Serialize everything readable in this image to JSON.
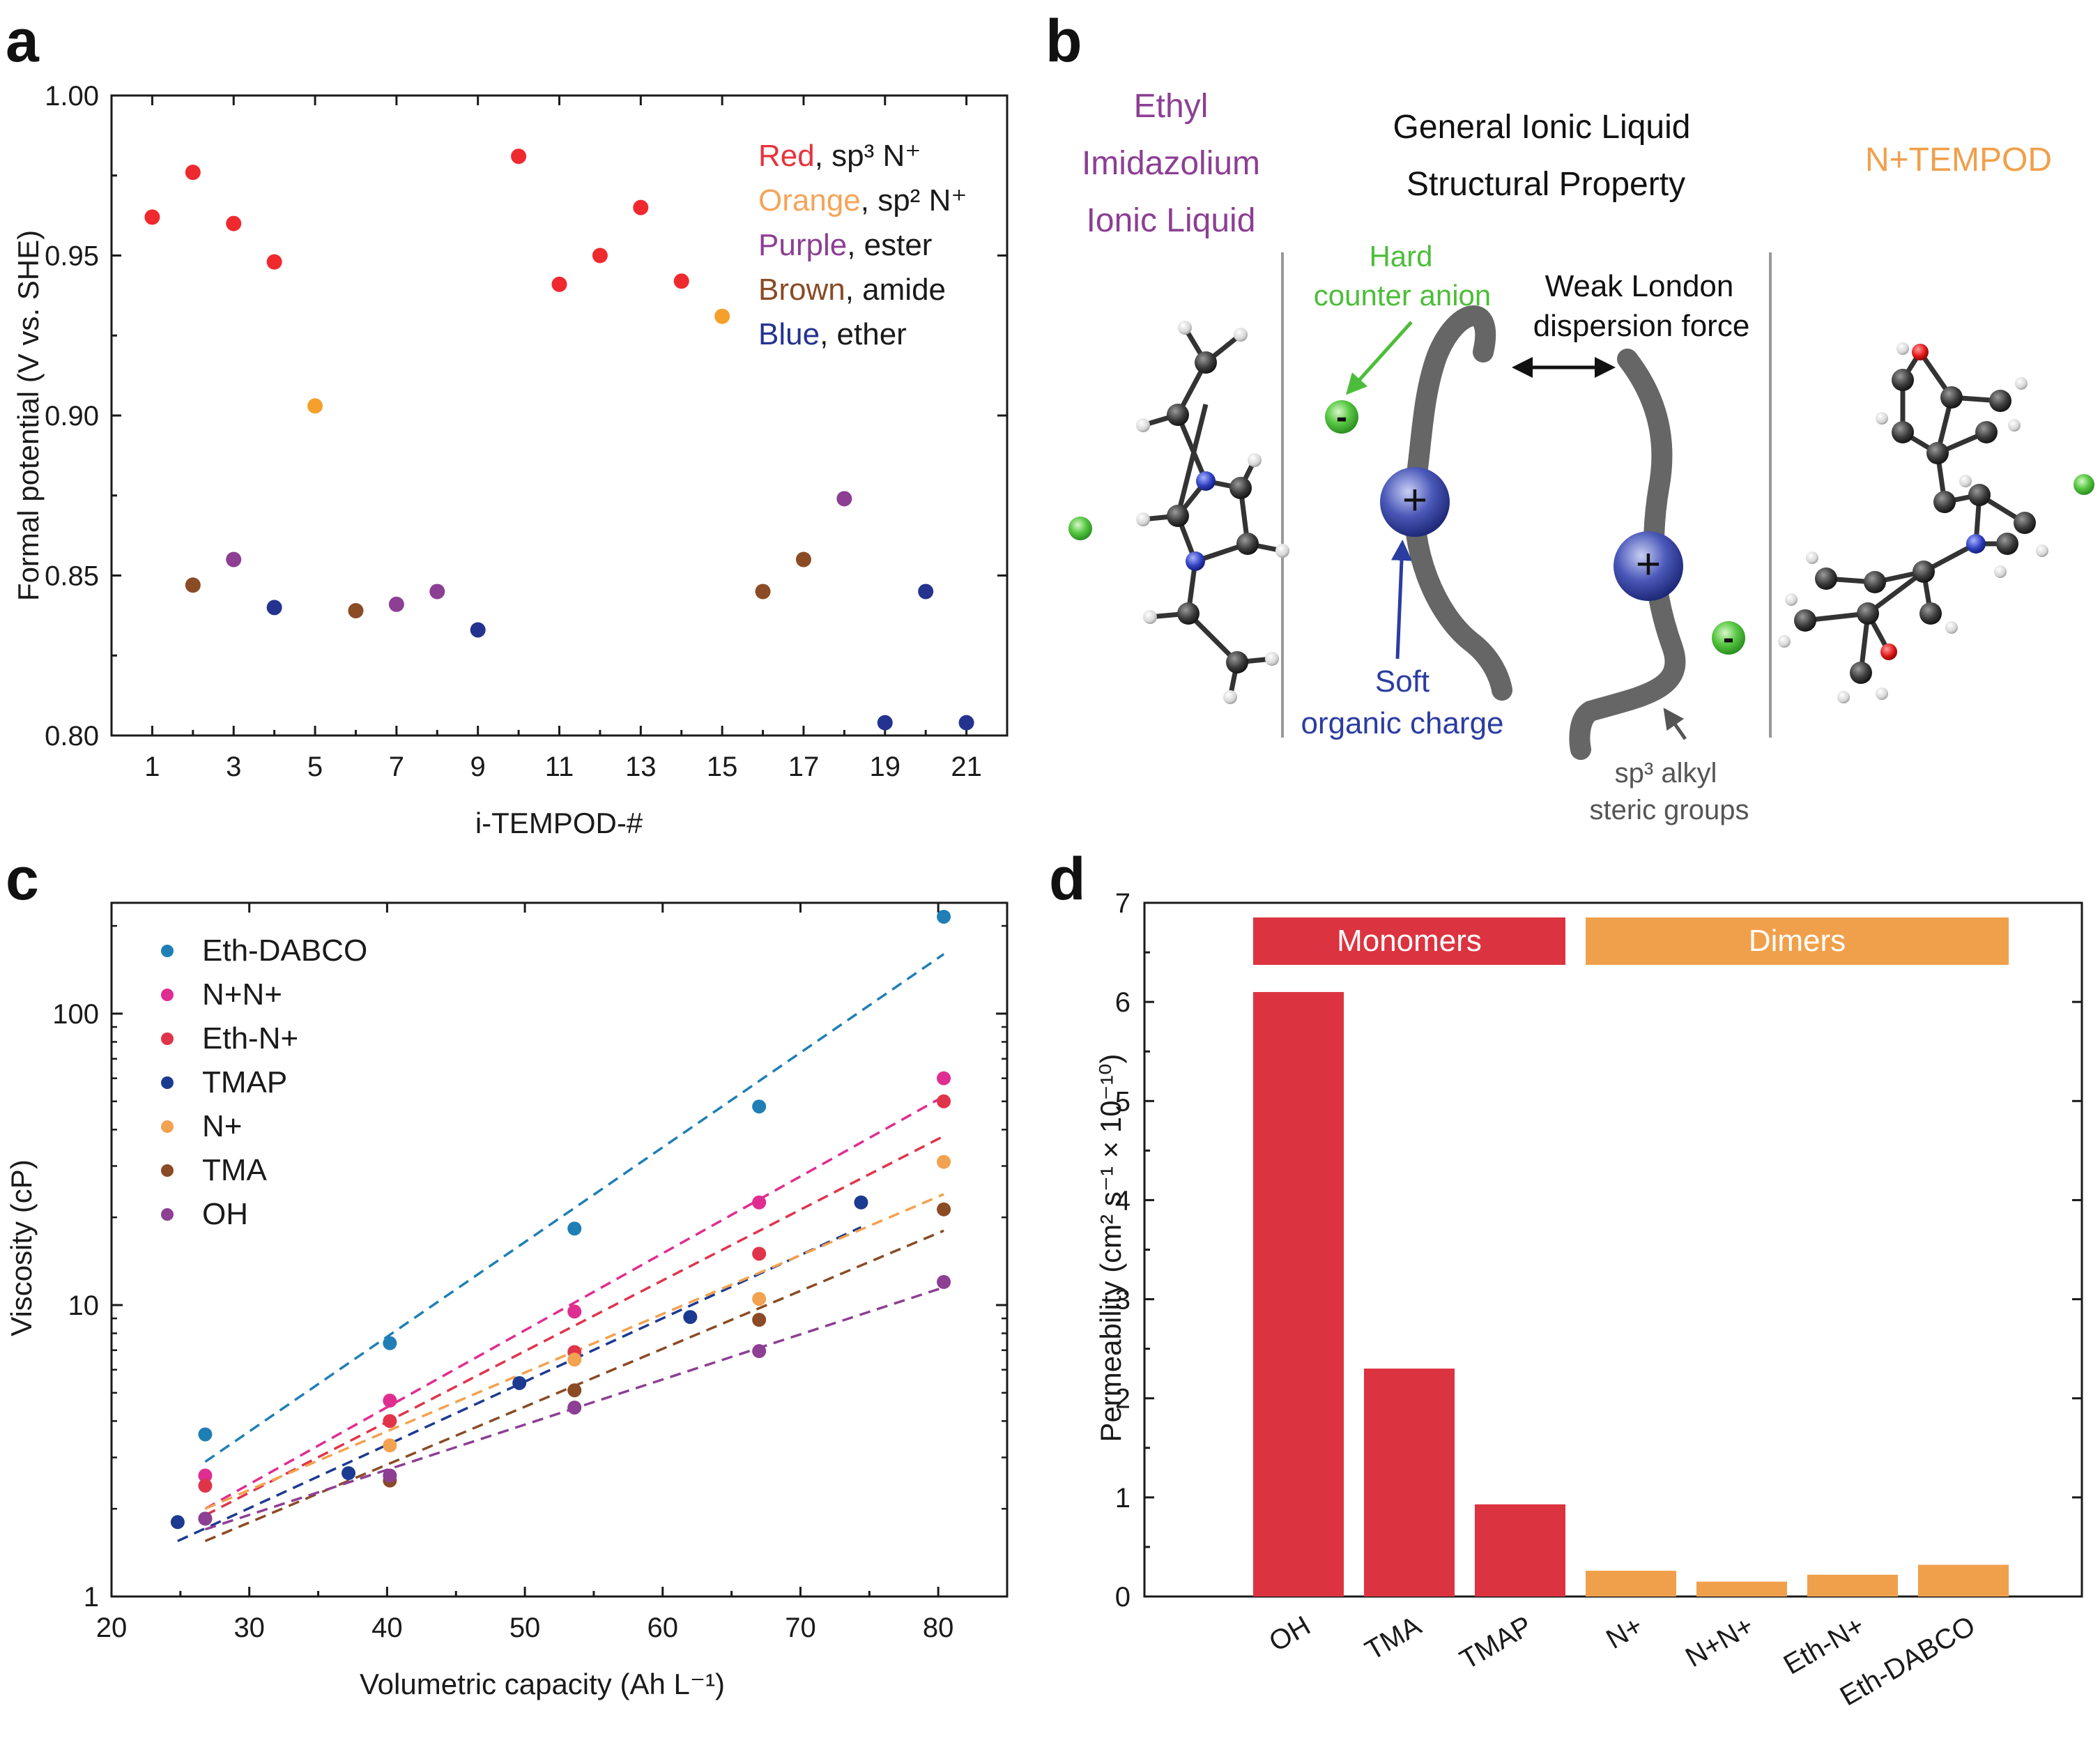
{
  "panels": {
    "a": "a",
    "b": "b",
    "c": "c",
    "d": "d"
  },
  "colors": {
    "red": "#ee2a2f",
    "orange": "#f5a02d",
    "purple": "#8c3f93",
    "brown": "#8a4b25",
    "blue": "#24338f",
    "green": "#4cbd3a",
    "bar_red": "#dc3340",
    "bar_orange": "#f0a04b"
  },
  "panel_a": {
    "ylabel": "Formal potential (V vs. SHE)",
    "xlabel": "i-TEMPOD-#",
    "legend": [
      {
        "name": "Red",
        "suffix": ", sp³ N⁺",
        "color": "#e8323c"
      },
      {
        "name": "Orange",
        "suffix": ", sp² N⁺",
        "color": "#f5a45a"
      },
      {
        "name": "Purple",
        "suffix": ", ester",
        "color": "#8c3f93"
      },
      {
        "name": "Brown",
        "suffix": ", amide",
        "color": "#8a4b25"
      },
      {
        "name": "Blue",
        "suffix": ", ether",
        "color": "#24338f"
      }
    ]
  },
  "panel_b": {
    "left_title": [
      "Ethyl",
      "Imidazolium",
      "Ionic Liquid"
    ],
    "center_title": [
      "General Ionic Liquid",
      "Structural Property"
    ],
    "right_title": "N+TEMPOD",
    "hard_anion": [
      "Hard",
      "counter anion"
    ],
    "weak_london": [
      "Weak London",
      "dispersion force"
    ],
    "soft_charge": [
      "Soft",
      "organic charge"
    ],
    "steric": [
      "sp³ alkyl",
      "steric groups"
    ],
    "plus": "+",
    "minus": "-"
  },
  "panel_c": {
    "ylabel": "Viscosity (cP)",
    "xlabel": "Volumetric capacity (Ah L⁻¹)"
  },
  "panel_d": {
    "ylabel": "Permeability (cm² s⁻¹ × 10⁻¹⁰)",
    "group_labels": [
      "Monomers",
      "Dimers"
    ]
  },
  "chart_data": [
    {
      "id": "a",
      "type": "scatter",
      "xlabel": "i-TEMPOD-#",
      "ylabel": "Formal potential (V vs. SHE)",
      "xlim": [
        0,
        22
      ],
      "ylim": [
        0.8,
        1.0
      ],
      "xticks": [
        1,
        3,
        5,
        7,
        9,
        11,
        13,
        15,
        17,
        19,
        21
      ],
      "yticks": [
        0.8,
        0.85,
        0.9,
        0.95,
        1.0
      ],
      "ytick_labels": [
        "0.80",
        "0.85",
        "0.90",
        "0.95",
        "1.00"
      ],
      "series": [
        {
          "name": "Red, sp³ N⁺",
          "color": "#ee2a2f",
          "x": [
            1,
            2,
            3,
            4,
            10,
            11,
            12,
            13,
            14
          ],
          "y": [
            0.962,
            0.976,
            0.96,
            0.948,
            0.981,
            0.941,
            0.95,
            0.965,
            0.942
          ]
        },
        {
          "name": "Orange, sp² N⁺",
          "color": "#f5a02d",
          "x": [
            5,
            15
          ],
          "y": [
            0.903,
            0.931
          ]
        },
        {
          "name": "Purple, ester",
          "color": "#8c3f93",
          "x": [
            3,
            7,
            8,
            18
          ],
          "y": [
            0.855,
            0.841,
            0.845,
            0.874
          ]
        },
        {
          "name": "Brown, amide",
          "color": "#8a4b25",
          "x": [
            2,
            6,
            16,
            17
          ],
          "y": [
            0.847,
            0.839,
            0.845,
            0.855
          ]
        },
        {
          "name": "Blue, ether",
          "color": "#24338f",
          "x": [
            4,
            9,
            19,
            20,
            21
          ],
          "y": [
            0.84,
            0.833,
            0.804,
            0.845,
            0.804
          ]
        }
      ]
    },
    {
      "id": "c",
      "type": "scatter",
      "yscale": "log",
      "xlabel": "Volumetric capacity (Ah L⁻¹)",
      "ylabel": "Viscosity (cP)",
      "xlim": [
        20,
        85
      ],
      "ylim": [
        1,
        240
      ],
      "xticks": [
        20,
        30,
        40,
        50,
        60,
        70,
        80
      ],
      "yticks": [
        1,
        10,
        100
      ],
      "legend_position": "top-left",
      "series": [
        {
          "name": "Eth-DABCO",
          "color": "#1f7fb5",
          "x": [
            26.8,
            40.2,
            53.6,
            67.0,
            80.4
          ],
          "y": [
            3.6,
            7.4,
            18.3,
            48,
            215
          ],
          "fit": [
            [
              26.8,
              2.9
            ],
            [
              80.4,
              160
            ]
          ]
        },
        {
          "name": "N+N+",
          "color": "#e02d91",
          "x": [
            26.8,
            40.2,
            53.6,
            67.0,
            80.4
          ],
          "y": [
            2.6,
            4.7,
            9.5,
            22.5,
            60
          ],
          "fit": [
            [
              26.8,
              2.0
            ],
            [
              80.4,
              52
            ]
          ]
        },
        {
          "name": "Eth-N+",
          "color": "#e0344a",
          "x": [
            26.8,
            40.2,
            53.6,
            67.0,
            80.4
          ],
          "y": [
            2.4,
            4.0,
            6.9,
            15,
            50
          ],
          "fit": [
            [
              26.8,
              1.9
            ],
            [
              80.4,
              38
            ]
          ]
        },
        {
          "name": "TMAP",
          "color": "#1c3a8f",
          "x": [
            24.8,
            37.2,
            49.6,
            62.0,
            74.4
          ],
          "y": [
            1.8,
            2.65,
            5.4,
            9.1,
            22.5
          ],
          "fit": [
            [
              24.8,
              1.55
            ],
            [
              74.4,
              18.5
            ]
          ]
        },
        {
          "name": "N+",
          "color": "#f2a250",
          "x": [
            40.2,
            53.6,
            67.0,
            80.4
          ],
          "y": [
            3.3,
            6.5,
            10.5,
            31
          ],
          "fit": [
            [
              26.8,
              2.0
            ],
            [
              80.4,
              24
            ]
          ]
        },
        {
          "name": "TMA",
          "color": "#8a4b25",
          "x": [
            26.8,
            40.2,
            53.6,
            67.0,
            80.4
          ],
          "y": [
            1.85,
            2.5,
            5.1,
            8.9,
            21.3
          ],
          "fit": [
            [
              26.8,
              1.55
            ],
            [
              80.4,
              18
            ]
          ]
        },
        {
          "name": "OH",
          "color": "#8c3f93",
          "x": [
            26.8,
            40.2,
            53.6,
            67.0,
            80.4
          ],
          "y": [
            1.85,
            2.6,
            4.45,
            6.95,
            12
          ],
          "fit": [
            [
              26.8,
              1.7
            ],
            [
              80.4,
              11.5
            ]
          ]
        }
      ]
    },
    {
      "id": "d",
      "type": "bar",
      "ylabel": "Permeability (cm² s⁻¹ × 10⁻¹⁰)",
      "ylim": [
        0,
        7
      ],
      "yticks": [
        0,
        1,
        2,
        3,
        4,
        5,
        6,
        7
      ],
      "categories": [
        "OH",
        "TMA",
        "TMAP",
        "N+",
        "N+N+",
        "Eth-N+",
        "Eth-DABCO"
      ],
      "values": [
        6.1,
        2.3,
        0.93,
        0.26,
        0.15,
        0.22,
        0.32
      ],
      "groups": [
        {
          "name": "Monomers",
          "color": "#dc3340",
          "indices": [
            0,
            1,
            2
          ]
        },
        {
          "name": "Dimers",
          "color": "#f0a04b",
          "indices": [
            3,
            4,
            5,
            6
          ]
        }
      ]
    }
  ]
}
